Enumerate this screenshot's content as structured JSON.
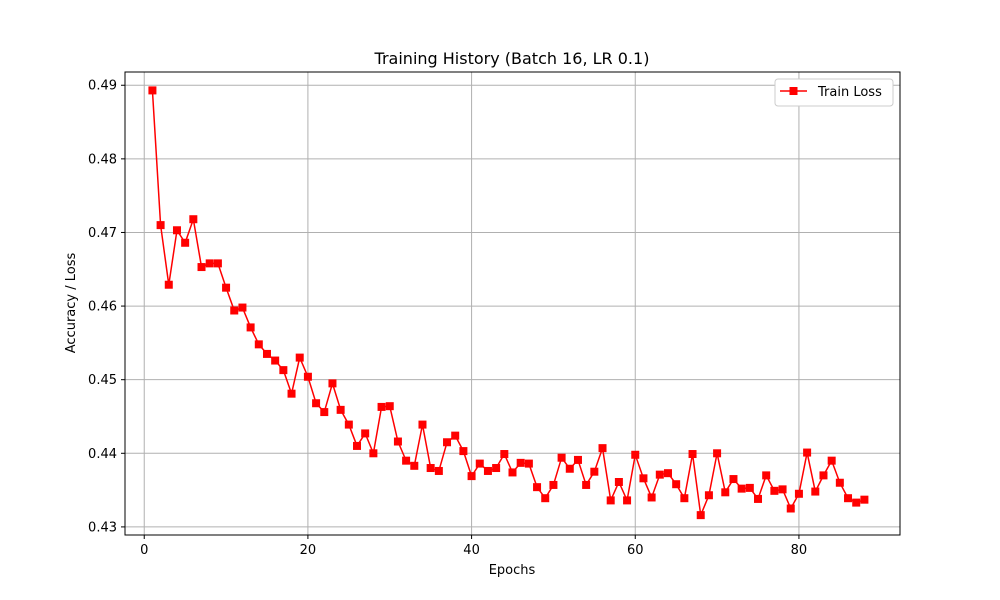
{
  "chart_data": {
    "type": "line",
    "title": "Training History (Batch 16, LR 0.1)",
    "xlabel": "Epochs",
    "ylabel": "Accuracy / Loss",
    "xlim": [
      -2.35,
      92.35
    ],
    "ylim": [
      0.4289,
      0.4918
    ],
    "xticks": [
      0,
      20,
      40,
      60,
      80
    ],
    "yticks": [
      0.43,
      0.44,
      0.45,
      0.46,
      0.47,
      0.48,
      0.49
    ],
    "ytick_labels": [
      "0.43",
      "0.44",
      "0.45",
      "0.46",
      "0.47",
      "0.48",
      "0.49"
    ],
    "grid": true,
    "legend_position": "top-right",
    "series": [
      {
        "name": "Train Loss",
        "color": "#ff0000",
        "marker": "square",
        "x": [
          1,
          2,
          3,
          4,
          5,
          6,
          7,
          8,
          9,
          10,
          11,
          12,
          13,
          14,
          15,
          16,
          17,
          18,
          19,
          20,
          21,
          22,
          23,
          24,
          25,
          26,
          27,
          28,
          29,
          30,
          31,
          32,
          33,
          34,
          35,
          36,
          37,
          38,
          39,
          40,
          41,
          42,
          43,
          44,
          45,
          46,
          47,
          48,
          49,
          50,
          51,
          52,
          53,
          54,
          55,
          56,
          57,
          58,
          59,
          60,
          61,
          62,
          63,
          64,
          65,
          66,
          67,
          68,
          69,
          70,
          71,
          72,
          73,
          74,
          75,
          76,
          77,
          78,
          79,
          80,
          81,
          82,
          83,
          84,
          85,
          86,
          87,
          88
        ],
        "y": [
          0.4893,
          0.471,
          0.4629,
          0.4703,
          0.4686,
          0.4718,
          0.4653,
          0.4658,
          0.4658,
          0.4625,
          0.4594,
          0.4598,
          0.4571,
          0.4548,
          0.4535,
          0.4526,
          0.4513,
          0.4481,
          0.453,
          0.4504,
          0.4468,
          0.4456,
          0.4495,
          0.4459,
          0.4439,
          0.441,
          0.4427,
          0.44,
          0.4463,
          0.4464,
          0.4416,
          0.439,
          0.4383,
          0.4439,
          0.438,
          0.4376,
          0.4415,
          0.4424,
          0.4403,
          0.4369,
          0.4386,
          0.4376,
          0.438,
          0.4399,
          0.4374,
          0.4387,
          0.4386,
          0.4354,
          0.4339,
          0.4357,
          0.4394,
          0.4379,
          0.4391,
          0.4357,
          0.4375,
          0.4407,
          0.4336,
          0.4361,
          0.4336,
          0.4398,
          0.4366,
          0.434,
          0.4371,
          0.4373,
          0.4358,
          0.4339,
          0.4399,
          0.4316,
          0.4343,
          0.44,
          0.4347,
          0.4365,
          0.4352,
          0.4353,
          0.4338,
          0.437,
          0.4349,
          0.4351,
          0.4325,
          0.4345,
          0.4401,
          0.4348,
          0.437,
          0.439,
          0.436,
          0.4339,
          0.4333,
          0.4337
        ]
      }
    ]
  }
}
